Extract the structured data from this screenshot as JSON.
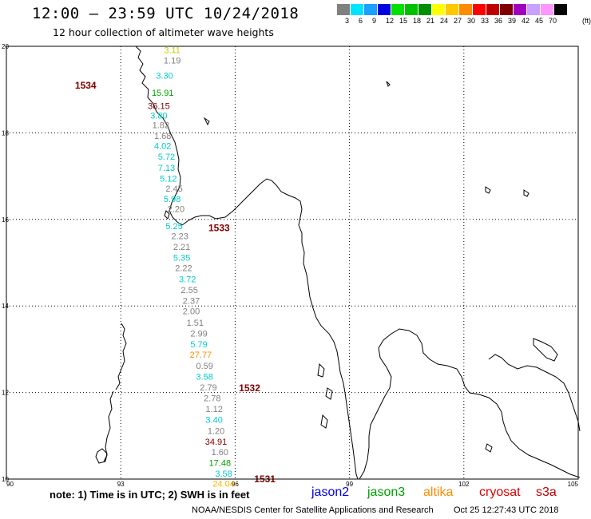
{
  "header": {
    "title": "12:00 — 23:59 UTC 10/24/2018",
    "subtitle": "12 hour collection of altimeter wave heights"
  },
  "legend": {
    "units": "(ft)",
    "swatches": [
      {
        "label": "3",
        "color": "#808080"
      },
      {
        "label": "6",
        "color": "#00e5ff"
      },
      {
        "label": "9",
        "color": "#1aa0ff"
      },
      {
        "label": "12",
        "color": "#0000e0"
      },
      {
        "label": "15",
        "color": "#00e000"
      },
      {
        "label": "18",
        "color": "#00c000"
      },
      {
        "label": "21",
        "color": "#009000"
      },
      {
        "label": "24",
        "color": "#ffff00"
      },
      {
        "label": "27",
        "color": "#ffc800"
      },
      {
        "label": "30",
        "color": "#ff8c00"
      },
      {
        "label": "33",
        "color": "#ff0000"
      },
      {
        "label": "36",
        "color": "#c00000"
      },
      {
        "label": "39",
        "color": "#800000"
      },
      {
        "label": "42",
        "color": "#a000c0"
      },
      {
        "label": "45",
        "color": "#c8a0ff"
      },
      {
        "label": "70",
        "color": "#ff96ff"
      },
      {
        "label": "",
        "color": "#000000"
      }
    ]
  },
  "map": {
    "lat_ticks": [
      "20",
      "18",
      "16",
      "14",
      "12",
      "10"
    ],
    "lon_ticks": [
      "90",
      "93",
      "96",
      "99",
      "102",
      "105"
    ],
    "lat_range": [
      10,
      20
    ],
    "lon_range": [
      90,
      105
    ],
    "pass_labels": [
      {
        "text": "1534",
        "lat": 19.1,
        "lon": 91.8,
        "color": "#800000"
      },
      {
        "text": "1533",
        "lat": 15.8,
        "lon": 95.3,
        "color": "#800000"
      },
      {
        "text": "1532",
        "lat": 12.1,
        "lon": 96.1,
        "color": "#800000"
      },
      {
        "text": "1531",
        "lat": 10.0,
        "lon": 96.5,
        "color": "#800000"
      }
    ],
    "wave_heights": [
      {
        "text": "3.11",
        "lat": 19.92,
        "lon": 94.35,
        "color": "#cccc00"
      },
      {
        "text": "1.19",
        "lat": 19.68,
        "lon": 94.35,
        "color": "#808080"
      },
      {
        "text": "3.30",
        "lat": 19.33,
        "lon": 94.15,
        "color": "#00cccc"
      },
      {
        "text": "15.91",
        "lat": 18.93,
        "lon": 94.1,
        "color": "#00a000"
      },
      {
        "text": "36.15",
        "lat": 18.63,
        "lon": 94.0,
        "color": "#800000"
      },
      {
        "text": "3.80",
        "lat": 18.4,
        "lon": 94.0,
        "color": "#00cccc"
      },
      {
        "text": "1.82",
        "lat": 18.18,
        "lon": 94.05,
        "color": "#808080"
      },
      {
        "text": "1.68",
        "lat": 17.93,
        "lon": 94.1,
        "color": "#808080"
      },
      {
        "text": "4.02",
        "lat": 17.7,
        "lon": 94.1,
        "color": "#00cccc"
      },
      {
        "text": "5.72",
        "lat": 17.45,
        "lon": 94.2,
        "color": "#00cccc"
      },
      {
        "text": "7.13",
        "lat": 17.2,
        "lon": 94.2,
        "color": "#00cccc"
      },
      {
        "text": "5.12",
        "lat": 16.95,
        "lon": 94.25,
        "color": "#00cccc"
      },
      {
        "text": "2.45",
        "lat": 16.72,
        "lon": 94.4,
        "color": "#808080"
      },
      {
        "text": "5.98",
        "lat": 16.48,
        "lon": 94.35,
        "color": "#00cccc"
      },
      {
        "text": "2.20",
        "lat": 16.25,
        "lon": 94.45,
        "color": "#808080"
      },
      {
        "text": "5.25",
        "lat": 15.85,
        "lon": 94.4,
        "color": "#00cccc"
      },
      {
        "text": "2.23",
        "lat": 15.62,
        "lon": 94.55,
        "color": "#808080"
      },
      {
        "text": "2.21",
        "lat": 15.37,
        "lon": 94.6,
        "color": "#808080"
      },
      {
        "text": "5.35",
        "lat": 15.12,
        "lon": 94.6,
        "color": "#00cccc"
      },
      {
        "text": "2.22",
        "lat": 14.88,
        "lon": 94.65,
        "color": "#808080"
      },
      {
        "text": "3.72",
        "lat": 14.62,
        "lon": 94.75,
        "color": "#00cccc"
      },
      {
        "text": "2.55",
        "lat": 14.37,
        "lon": 94.8,
        "color": "#808080"
      },
      {
        "text": "2.37",
        "lat": 14.12,
        "lon": 94.85,
        "color": "#808080"
      },
      {
        "text": "2.00",
        "lat": 13.88,
        "lon": 94.85,
        "color": "#808080"
      },
      {
        "text": "1.51",
        "lat": 13.62,
        "lon": 94.95,
        "color": "#808080"
      },
      {
        "text": "2.99",
        "lat": 13.37,
        "lon": 95.05,
        "color": "#808080"
      },
      {
        "text": "5.79",
        "lat": 13.12,
        "lon": 95.05,
        "color": "#00cccc"
      },
      {
        "text": "27.77",
        "lat": 12.88,
        "lon": 95.1,
        "color": "#ff8c00"
      },
      {
        "text": "0.59",
        "lat": 12.62,
        "lon": 95.2,
        "color": "#808080"
      },
      {
        "text": "3.58",
        "lat": 12.37,
        "lon": 95.2,
        "color": "#00cccc"
      },
      {
        "text": "2.79",
        "lat": 12.12,
        "lon": 95.3,
        "color": "#808080"
      },
      {
        "text": "2.78",
        "lat": 11.87,
        "lon": 95.4,
        "color": "#808080"
      },
      {
        "text": "1.12",
        "lat": 11.62,
        "lon": 95.45,
        "color": "#808080"
      },
      {
        "text": "3.40",
        "lat": 11.37,
        "lon": 95.45,
        "color": "#00cccc"
      },
      {
        "text": "1.20",
        "lat": 11.12,
        "lon": 95.5,
        "color": "#808080"
      },
      {
        "text": "34.91",
        "lat": 10.87,
        "lon": 95.5,
        "color": "#800000"
      },
      {
        "text": "1.60",
        "lat": 10.63,
        "lon": 95.6,
        "color": "#808080"
      },
      {
        "text": "17.48",
        "lat": 10.38,
        "lon": 95.6,
        "color": "#00a000"
      },
      {
        "text": "3.58",
        "lat": 10.13,
        "lon": 95.7,
        "color": "#00cccc"
      },
      {
        "text": "24.04",
        "lat": 9.9,
        "lon": 95.7,
        "color": "#ffb000"
      }
    ]
  },
  "footer": {
    "note": "note: 1) Time is in UTC; 2) SWH is in feet",
    "satellites": [
      {
        "name": "jason2",
        "color": "#0000e0"
      },
      {
        "name": "jason3",
        "color": "#00a000"
      },
      {
        "name": "altika",
        "color": "#ff8c00"
      },
      {
        "name": "cryosat",
        "color": "#e00000"
      },
      {
        "name": "s3a",
        "color": "#c00000"
      }
    ],
    "credit": "NOAA/NESDIS Center for Satellite Applications and Research",
    "timestamp": "Oct 25 12:27:43 UTC 2018"
  }
}
